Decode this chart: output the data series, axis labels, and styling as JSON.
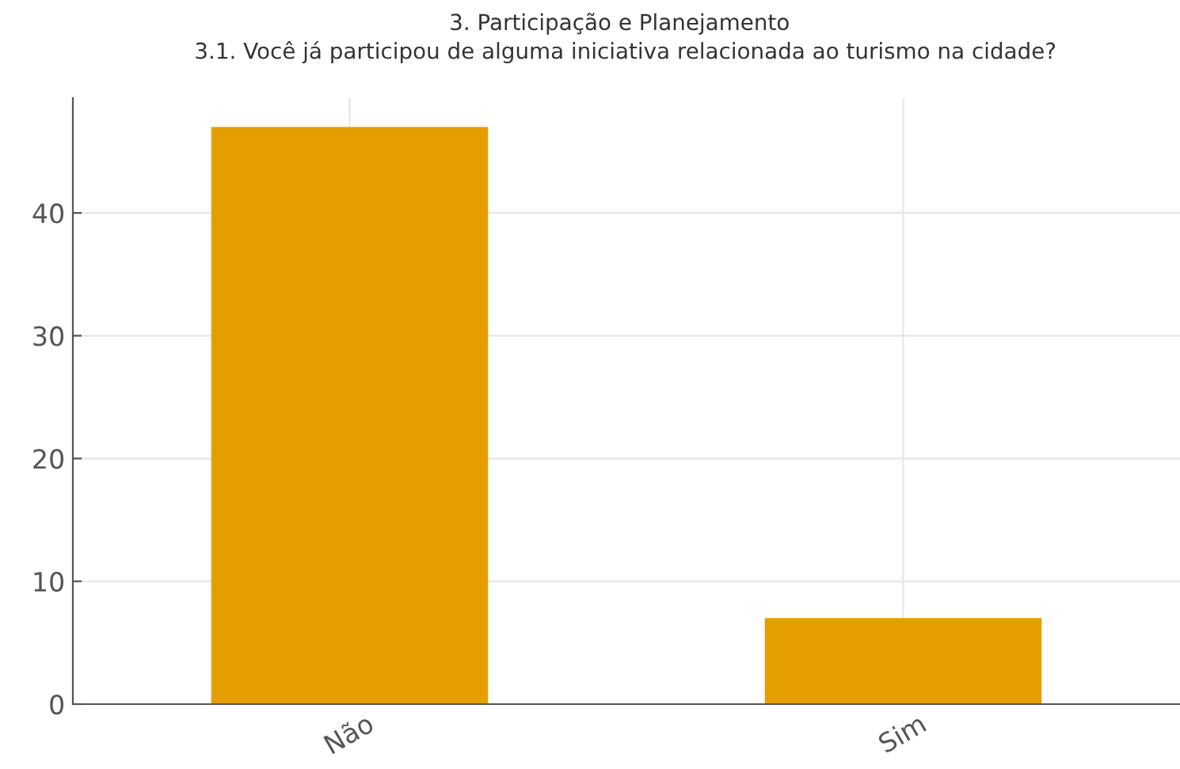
{
  "chart_data": {
    "type": "bar",
    "title": "3. Participação e Planejamento",
    "subtitle": "3.1. Você já participou de alguma iniciativa relacionada ao turismo na cidade?",
    "categories": [
      "Não",
      "Sim"
    ],
    "values": [
      47,
      7
    ],
    "color": "#e49e00",
    "ylim": [
      0,
      49.35
    ],
    "yticks": [
      0,
      10,
      20,
      30,
      40
    ],
    "grid": true
  }
}
